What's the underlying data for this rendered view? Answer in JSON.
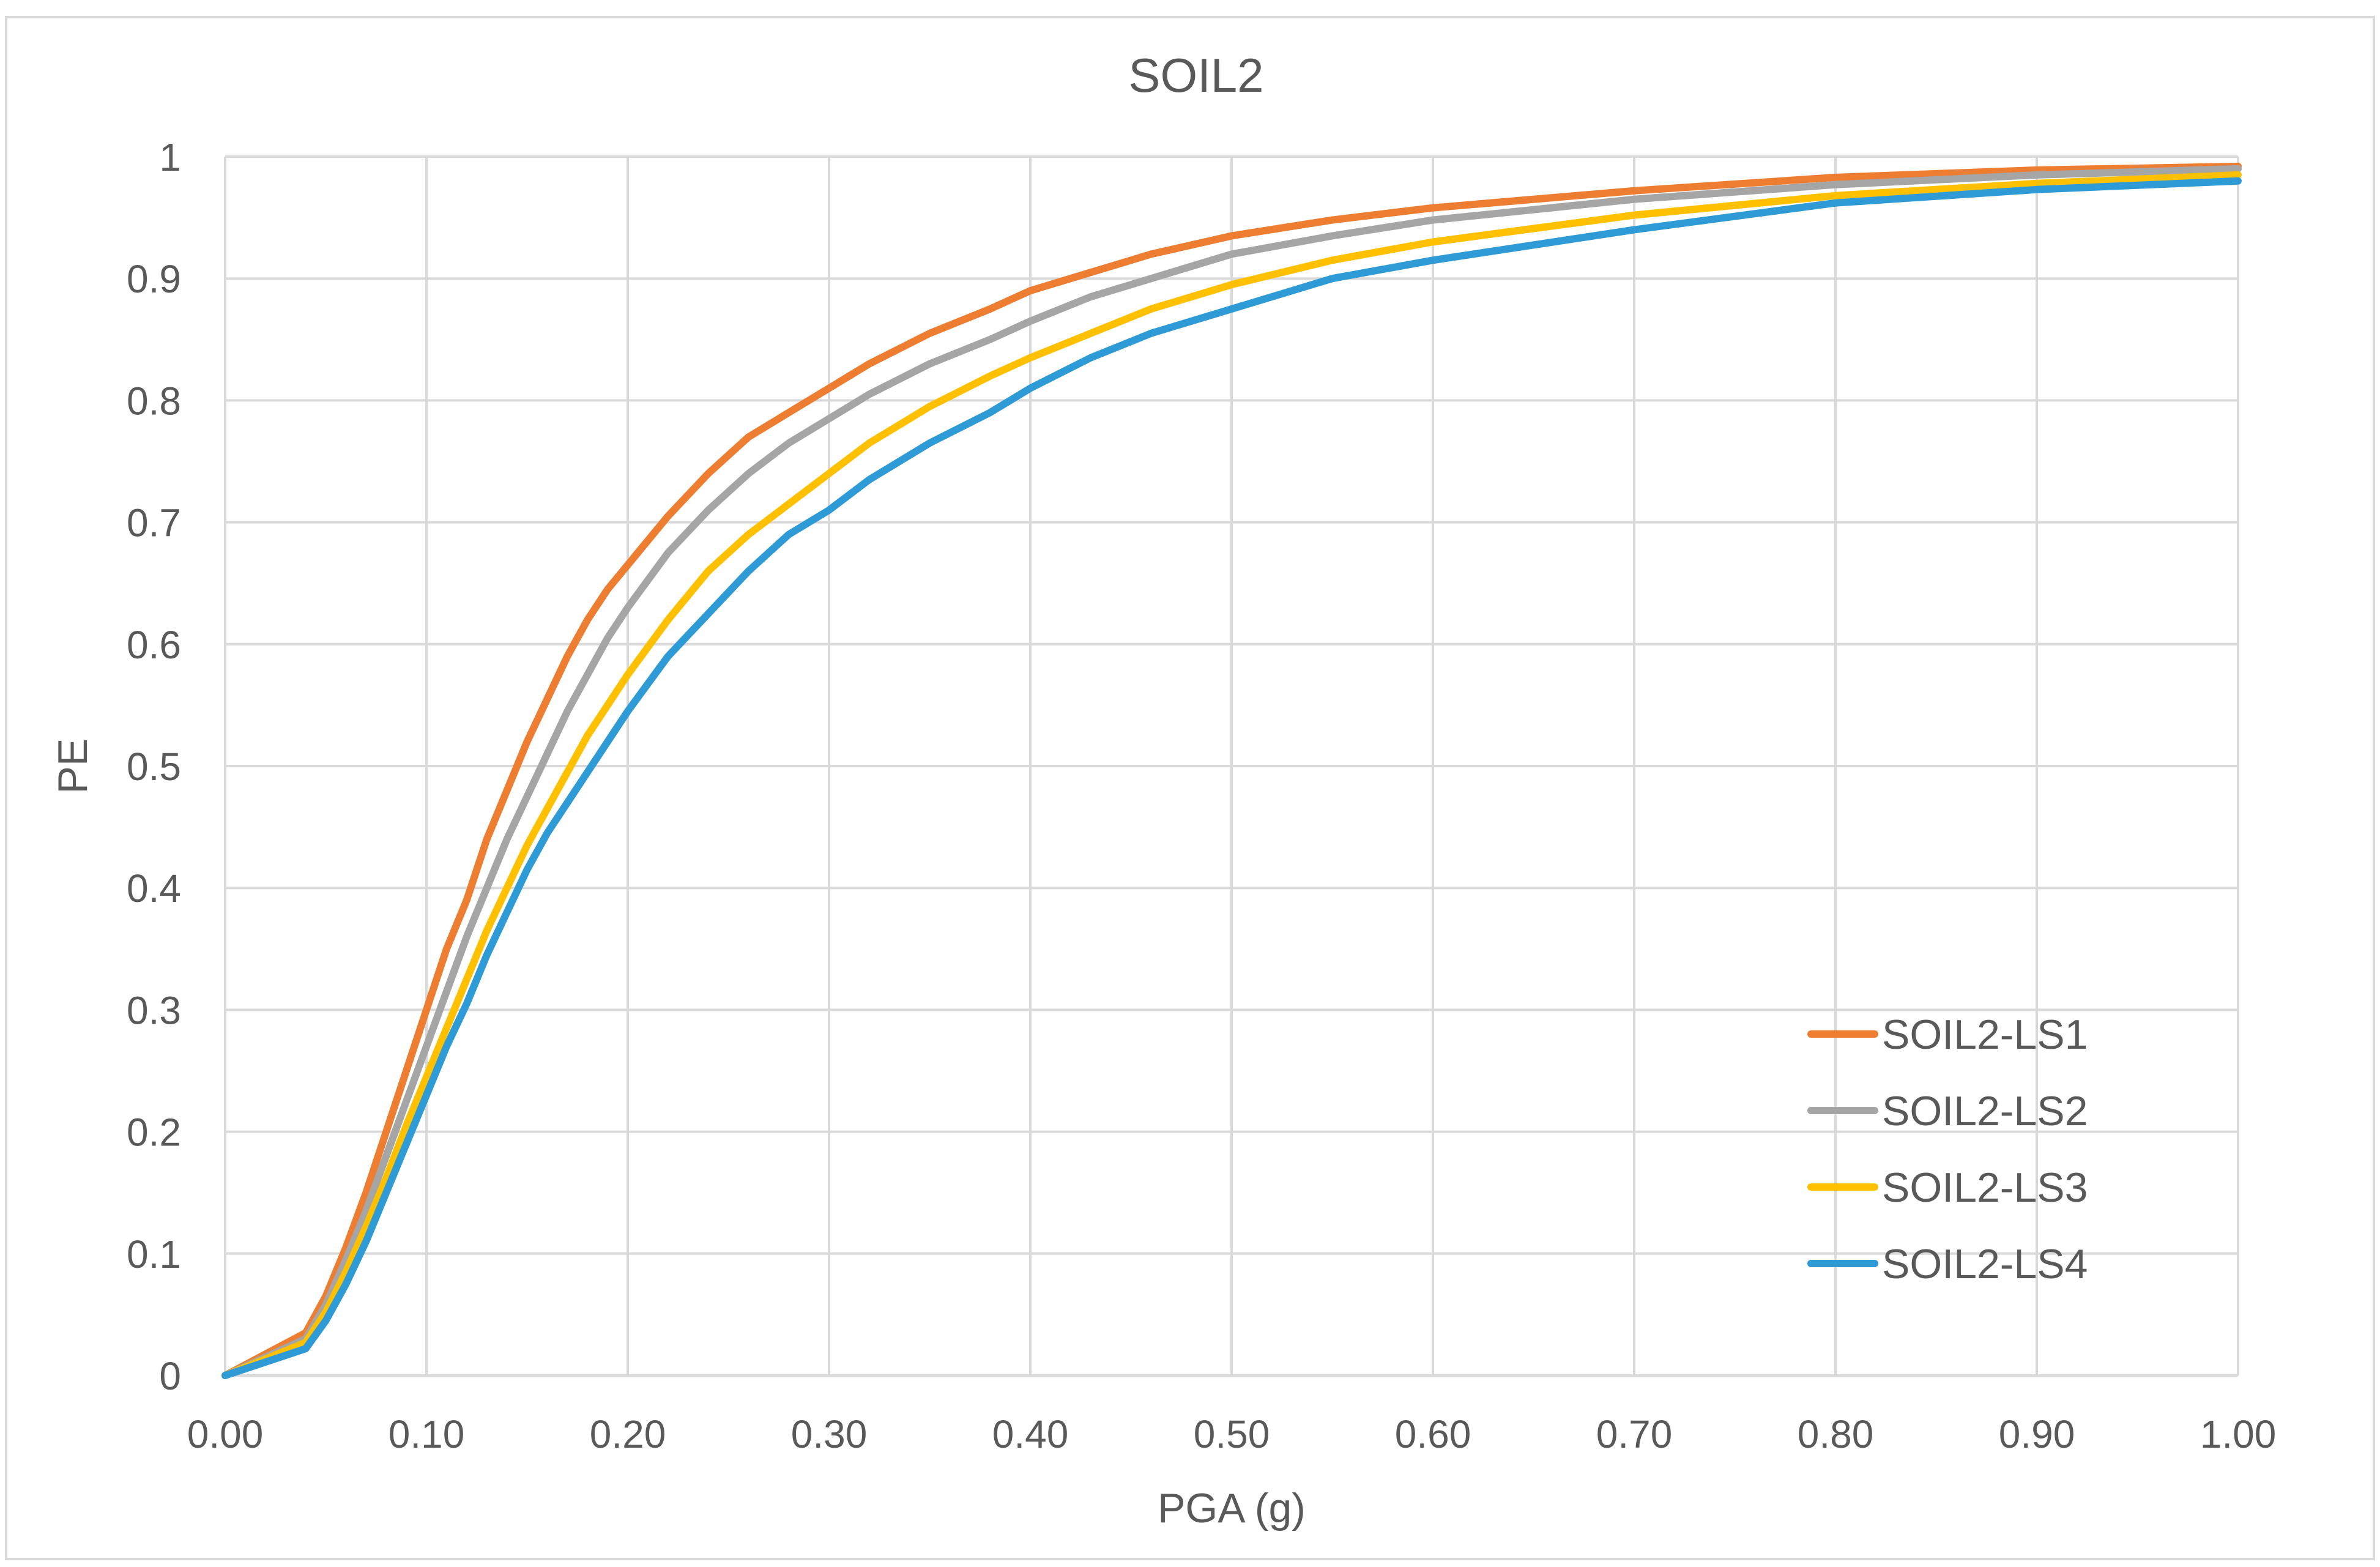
{
  "chart_data": {
    "type": "line",
    "title": "SOIL2",
    "xlabel": "PGA (g)",
    "ylabel": "PE",
    "xlim": [
      0,
      1
    ],
    "ylim": [
      0,
      1
    ],
    "x_ticks": [
      0,
      0.1,
      0.2,
      0.3,
      0.4,
      0.5,
      0.6,
      0.7,
      0.8,
      0.9,
      1.0
    ],
    "x_tick_labels": [
      "0.00",
      "0.10",
      "0.20",
      "0.30",
      "0.40",
      "0.50",
      "0.60",
      "0.70",
      "0.80",
      "0.90",
      "1.00"
    ],
    "y_ticks": [
      0,
      0.1,
      0.2,
      0.3,
      0.4,
      0.5,
      0.6,
      0.7,
      0.8,
      0.9,
      1
    ],
    "y_tick_labels": [
      "0",
      "0.1",
      "0.2",
      "0.3",
      "0.4",
      "0.5",
      "0.6",
      "0.7",
      "0.8",
      "0.9",
      "1"
    ],
    "grid": true,
    "legend_position": "bottom-right",
    "series": [
      {
        "name": "SOIL2-LS1",
        "color": "#ED7D31",
        "x": [
          0,
          0.04,
          0.05,
          0.06,
          0.07,
          0.08,
          0.09,
          0.1,
          0.11,
          0.12,
          0.13,
          0.14,
          0.15,
          0.16,
          0.17,
          0.18,
          0.19,
          0.2,
          0.22,
          0.24,
          0.26,
          0.28,
          0.3,
          0.32,
          0.35,
          0.38,
          0.4,
          0.43,
          0.46,
          0.5,
          0.55,
          0.6,
          0.7,
          0.8,
          0.9,
          1.0
        ],
        "y": [
          0,
          0.035,
          0.065,
          0.105,
          0.15,
          0.2,
          0.25,
          0.3,
          0.35,
          0.39,
          0.44,
          0.48,
          0.52,
          0.555,
          0.59,
          0.62,
          0.645,
          0.665,
          0.705,
          0.74,
          0.77,
          0.79,
          0.81,
          0.83,
          0.855,
          0.875,
          0.89,
          0.905,
          0.92,
          0.935,
          0.948,
          0.958,
          0.972,
          0.983,
          0.989,
          0.992
        ]
      },
      {
        "name": "SOIL2-LS2",
        "color": "#A5A5A5",
        "x": [
          0,
          0.04,
          0.05,
          0.06,
          0.07,
          0.08,
          0.09,
          0.1,
          0.11,
          0.12,
          0.13,
          0.14,
          0.15,
          0.16,
          0.17,
          0.18,
          0.19,
          0.2,
          0.22,
          0.24,
          0.26,
          0.28,
          0.3,
          0.32,
          0.35,
          0.38,
          0.4,
          0.43,
          0.46,
          0.5,
          0.55,
          0.6,
          0.7,
          0.8,
          0.9,
          1.0
        ],
        "y": [
          0,
          0.03,
          0.058,
          0.095,
          0.135,
          0.18,
          0.225,
          0.27,
          0.315,
          0.36,
          0.4,
          0.44,
          0.475,
          0.51,
          0.545,
          0.575,
          0.605,
          0.63,
          0.675,
          0.71,
          0.74,
          0.765,
          0.785,
          0.805,
          0.83,
          0.85,
          0.865,
          0.885,
          0.9,
          0.92,
          0.935,
          0.948,
          0.965,
          0.977,
          0.985,
          0.99
        ]
      },
      {
        "name": "SOIL2-LS3",
        "color": "#FFC000",
        "x": [
          0,
          0.04,
          0.05,
          0.06,
          0.07,
          0.08,
          0.09,
          0.1,
          0.11,
          0.12,
          0.13,
          0.14,
          0.15,
          0.16,
          0.17,
          0.18,
          0.19,
          0.2,
          0.22,
          0.24,
          0.26,
          0.28,
          0.3,
          0.32,
          0.35,
          0.38,
          0.4,
          0.43,
          0.46,
          0.5,
          0.55,
          0.6,
          0.7,
          0.8,
          0.9,
          1.0
        ],
        "y": [
          0,
          0.027,
          0.052,
          0.085,
          0.122,
          0.162,
          0.205,
          0.245,
          0.285,
          0.325,
          0.365,
          0.4,
          0.435,
          0.465,
          0.495,
          0.525,
          0.55,
          0.575,
          0.62,
          0.66,
          0.69,
          0.715,
          0.74,
          0.765,
          0.795,
          0.82,
          0.835,
          0.855,
          0.875,
          0.895,
          0.915,
          0.93,
          0.952,
          0.968,
          0.978,
          0.985
        ]
      },
      {
        "name": "SOIL2-LS4",
        "color": "#2E9BD6",
        "x": [
          0,
          0.04,
          0.05,
          0.06,
          0.07,
          0.08,
          0.09,
          0.1,
          0.11,
          0.12,
          0.13,
          0.14,
          0.15,
          0.16,
          0.17,
          0.18,
          0.19,
          0.2,
          0.22,
          0.24,
          0.26,
          0.28,
          0.3,
          0.32,
          0.35,
          0.38,
          0.4,
          0.43,
          0.46,
          0.5,
          0.55,
          0.6,
          0.7,
          0.8,
          0.9,
          1.0
        ],
        "y": [
          0,
          0.022,
          0.045,
          0.075,
          0.11,
          0.15,
          0.19,
          0.23,
          0.27,
          0.305,
          0.345,
          0.38,
          0.415,
          0.445,
          0.47,
          0.495,
          0.52,
          0.545,
          0.59,
          0.625,
          0.66,
          0.69,
          0.71,
          0.735,
          0.765,
          0.79,
          0.81,
          0.835,
          0.855,
          0.875,
          0.9,
          0.915,
          0.94,
          0.962,
          0.973,
          0.98
        ]
      }
    ]
  }
}
